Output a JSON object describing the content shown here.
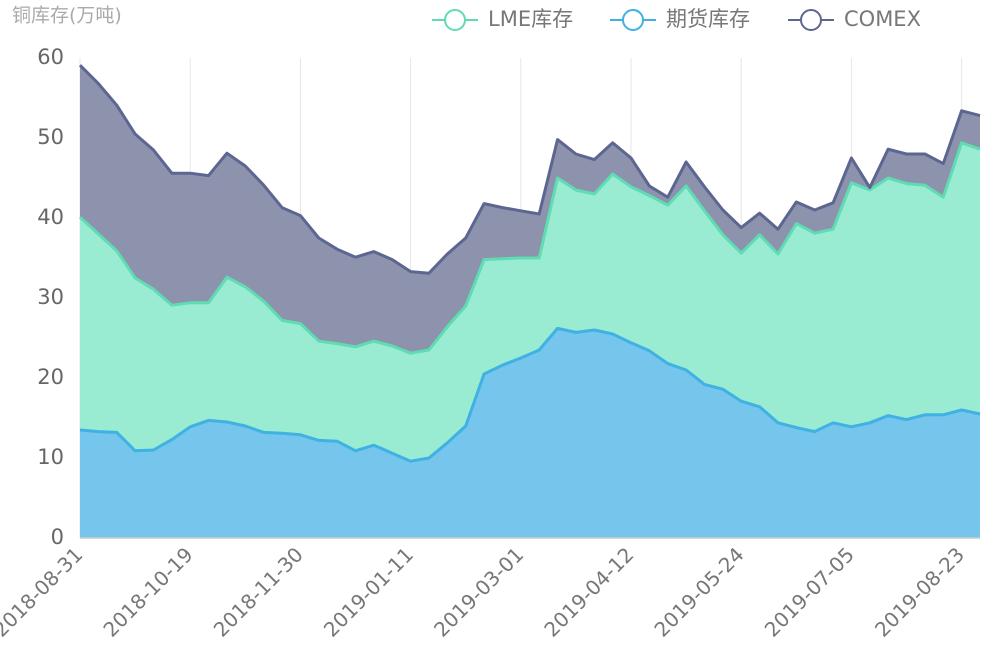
{
  "chart_data": {
    "type": "stacked_area",
    "title": "铜库存(万吨)",
    "categories": [
      "2018-08-31",
      null,
      null,
      null,
      null,
      null,
      "2018-10-19",
      null,
      null,
      null,
      null,
      null,
      "2018-11-30",
      null,
      null,
      null,
      null,
      null,
      "2019-01-11",
      null,
      null,
      null,
      null,
      null,
      "2019-03-01",
      null,
      null,
      null,
      null,
      null,
      "2019-04-12",
      null,
      null,
      null,
      null,
      null,
      "2019-05-24",
      null,
      null,
      null,
      null,
      null,
      "2019-07-05",
      null,
      null,
      null,
      null,
      null,
      "2019-08-23",
      null
    ],
    "series": [
      {
        "name": "LME库存",
        "color": "#5fdcb3",
        "fill": "#99ecd2",
        "values": [
          26.6,
          24.7,
          22.7,
          21.6,
          20.1,
          16.8,
          15.5,
          14.7,
          18.1,
          17.4,
          16.4,
          14.1,
          13.9,
          12.4,
          12.2,
          13.0,
          13.0,
          13.4,
          13.5,
          13.5,
          14.5,
          15.0,
          14.3,
          13.3,
          12.5,
          11.5,
          18.8,
          17.8,
          17.0,
          20.0,
          19.5,
          19.4,
          19.8,
          23.0,
          21.7,
          19.3,
          18.5,
          21.5,
          21.1,
          25.5,
          24.8,
          24.2,
          30.5,
          29.1,
          29.7,
          29.5,
          28.7,
          27.2,
          33.4,
          33.1
        ]
      },
      {
        "name": "期货库存",
        "color": "#3fb1e3",
        "fill": "#76c5ec",
        "values": [
          13.5,
          13.3,
          13.2,
          10.9,
          11.0,
          12.3,
          13.9,
          14.7,
          14.5,
          14.0,
          13.2,
          13.1,
          12.9,
          12.2,
          12.1,
          10.9,
          11.6,
          10.6,
          9.6,
          10.0,
          11.9,
          14.0,
          20.5,
          21.6,
          22.5,
          23.5,
          26.2,
          25.7,
          26.0,
          25.5,
          24.4,
          23.4,
          21.8,
          21.0,
          19.2,
          18.6,
          17.1,
          16.4,
          14.4,
          13.8,
          13.3,
          14.4,
          13.9,
          14.4,
          15.3,
          14.8,
          15.4,
          15.4,
          16.0,
          15.5
        ]
      },
      {
        "name": "COMEX",
        "color": "#5c6690",
        "fill": "#8d93ad",
        "values": [
          19.0,
          18.8,
          18.2,
          18.0,
          17.4,
          16.5,
          16.2,
          15.9,
          15.5,
          15.1,
          14.5,
          14.1,
          13.5,
          12.9,
          11.8,
          11.2,
          11.2,
          10.8,
          10.2,
          9.6,
          9.1,
          8.5,
          7.0,
          6.4,
          5.9,
          5.5,
          4.8,
          4.5,
          4.3,
          3.9,
          3.6,
          1.2,
          1.0,
          3.0,
          3.0,
          3.1,
          3.2,
          2.7,
          3.1,
          2.7,
          2.9,
          3.3,
          3.1,
          0.3,
          3.6,
          3.7,
          3.9,
          4.2,
          4.0,
          4.2
        ]
      }
    ],
    "ylim": [
      0,
      60
    ],
    "yticks": [
      0,
      10,
      20,
      30,
      40,
      50,
      60
    ]
  }
}
